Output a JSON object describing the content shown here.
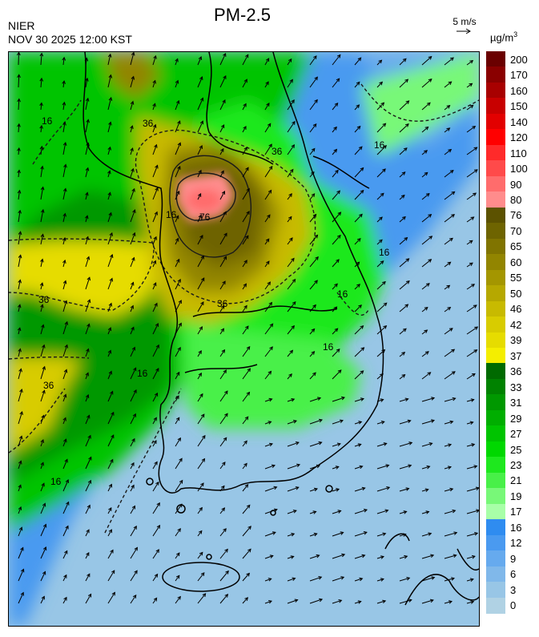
{
  "header": {
    "title": "PM-2.5",
    "agency": "NIER",
    "valid_time": "NOV 30 2025 12:00 KST"
  },
  "wind_reference": {
    "label": "5 m/s"
  },
  "colorbar": {
    "unit_base": "µg/m",
    "unit_exp": "3",
    "levels": [
      {
        "label": "200",
        "color": "#6a0000"
      },
      {
        "label": "170",
        "color": "#8a0000"
      },
      {
        "label": "160",
        "color": "#a80000"
      },
      {
        "label": "150",
        "color": "#c80000"
      },
      {
        "label": "140",
        "color": "#e20000"
      },
      {
        "label": "120",
        "color": "#ff0000"
      },
      {
        "label": "110",
        "color": "#ff2a2a"
      },
      {
        "label": "100",
        "color": "#ff4a4a"
      },
      {
        "label": "90",
        "color": "#ff6c6c"
      },
      {
        "label": "80",
        "color": "#ff8c8c"
      },
      {
        "label": "76",
        "color": "#5c5200"
      },
      {
        "label": "70",
        "color": "#6e6400"
      },
      {
        "label": "65",
        "color": "#807400"
      },
      {
        "label": "60",
        "color": "#928500"
      },
      {
        "label": "55",
        "color": "#a49600"
      },
      {
        "label": "50",
        "color": "#b6a800"
      },
      {
        "label": "46",
        "color": "#c8ba00"
      },
      {
        "label": "42",
        "color": "#d8cc00"
      },
      {
        "label": "39",
        "color": "#e6dc00"
      },
      {
        "label": "37",
        "color": "#f4ee00"
      },
      {
        "label": "36",
        "color": "#006a00"
      },
      {
        "label": "33",
        "color": "#008200"
      },
      {
        "label": "31",
        "color": "#009800"
      },
      {
        "label": "29",
        "color": "#00ae00"
      },
      {
        "label": "27",
        "color": "#00c400"
      },
      {
        "label": "25",
        "color": "#00d800"
      },
      {
        "label": "23",
        "color": "#1ee81e"
      },
      {
        "label": "21",
        "color": "#48f048"
      },
      {
        "label": "19",
        "color": "#78f878"
      },
      {
        "label": "17",
        "color": "#a8ffa8"
      },
      {
        "label": "16",
        "color": "#2f8cf0"
      },
      {
        "label": "12",
        "color": "#4a9af0"
      },
      {
        "label": "9",
        "color": "#66aaee"
      },
      {
        "label": "6",
        "color": "#80b8ea"
      },
      {
        "label": "3",
        "color": "#98c6e6"
      },
      {
        "label": "0",
        "color": "#b0d2e4"
      }
    ]
  },
  "map": {
    "contour_labels": [
      "36",
      "36",
      "36",
      "36",
      "16",
      "16",
      "16",
      "16",
      "16",
      "16",
      "76",
      "36",
      "16",
      "16"
    ]
  }
}
